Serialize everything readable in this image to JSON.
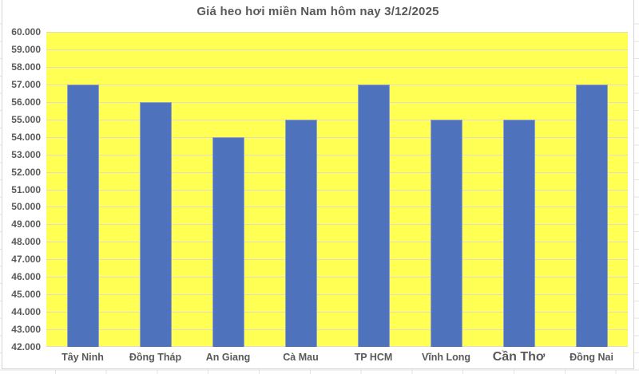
{
  "chart_data": {
    "type": "bar",
    "title": "Giá heo hơi miền Nam hôm nay 3/12/2025",
    "categories": [
      "Tây Ninh",
      "Đồng Tháp",
      "An Giang",
      "Cà Mau",
      "TP HCM",
      "Vĩnh Long",
      "Cần Thơ",
      "Đồng Nai"
    ],
    "values": [
      57000,
      56000,
      54000,
      55000,
      57000,
      55000,
      55000,
      57000
    ],
    "xlabel": "",
    "ylabel": "",
    "ylim": [
      42000,
      60000
    ],
    "ytick_step": 1000,
    "ytick_labels": [
      "60.000",
      "59.000",
      "58.000",
      "57.000",
      "56.000",
      "55.000",
      "54.000",
      "53.000",
      "52.000",
      "51.000",
      "50.000",
      "49.000",
      "48.000",
      "47.000",
      "46.000",
      "45.000",
      "44.000",
      "43.000",
      "42.000"
    ],
    "grid": true,
    "legend": "none",
    "emphasized_category": "Cần Thơ",
    "colors": {
      "bar": "#4e72bc",
      "bar_border": "#93a3c6",
      "plot_bg": "#ffff54",
      "grid": "#dddccd",
      "text": "#595959",
      "chart_bg": "#ffffff",
      "chart_border": "#d6d6d6"
    }
  }
}
